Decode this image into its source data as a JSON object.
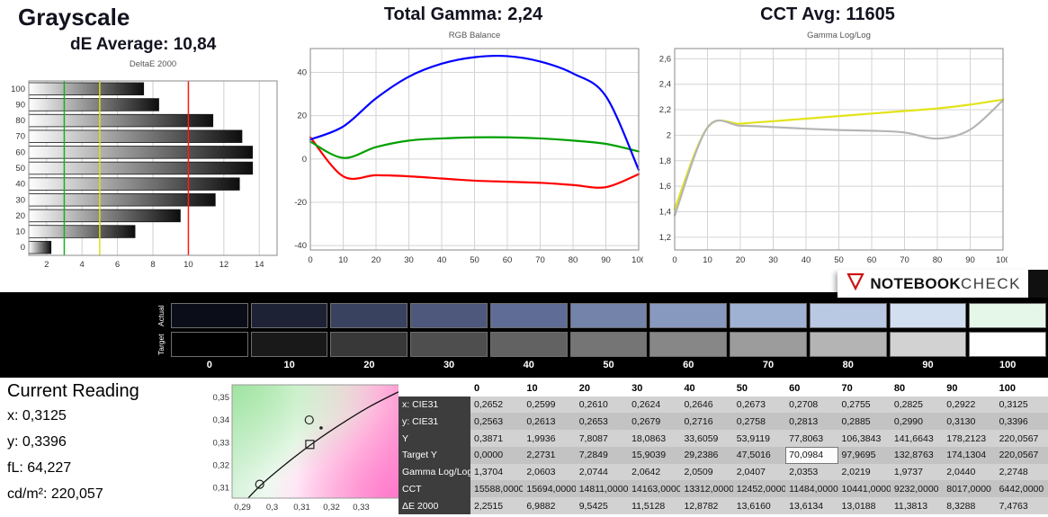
{
  "header": {
    "grayscale_title": "Grayscale",
    "de_average": "dE Average: 10,84",
    "total_gamma": "Total Gamma: 2,24",
    "cct_avg": "CCT Avg: 11605"
  },
  "logo": {
    "brand_bold": "NOTEBOOK",
    "brand_light": "CHECK",
    "accent_color": "#cc1111"
  },
  "chart_data": [
    {
      "type": "bar",
      "orientation": "horizontal",
      "title": "DeltaE 2000",
      "categories": [
        "100",
        "90",
        "80",
        "70",
        "60",
        "50",
        "40",
        "30",
        "20",
        "10",
        "0"
      ],
      "values": [
        7.4763,
        8.3288,
        11.3813,
        13.0188,
        13.6134,
        13.616,
        12.8782,
        11.5128,
        9.5425,
        6.9882,
        2.2515
      ],
      "xlim": [
        1,
        15
      ],
      "xticks": [
        2,
        4,
        6,
        8,
        10,
        12,
        14
      ],
      "bar_gradient": [
        "#ffffff",
        "#0d0d0d"
      ],
      "reference_lines": [
        {
          "x": 3,
          "color": "#19b219",
          "name": "good-threshold"
        },
        {
          "x": 5,
          "color": "#e0e019",
          "name": "acceptable-threshold"
        },
        {
          "x": 10,
          "color": "#ff1919",
          "name": "bad-threshold"
        }
      ]
    },
    {
      "type": "line",
      "title": "RGB Balance",
      "x": [
        0,
        10,
        20,
        30,
        40,
        50,
        60,
        70,
        80,
        90,
        100
      ],
      "xlim": [
        0,
        100
      ],
      "ylim": [
        -42,
        51
      ],
      "xticks": [
        0,
        10,
        20,
        30,
        40,
        50,
        60,
        70,
        80,
        90,
        100
      ],
      "xtick_labels": [
        "0",
        "10",
        "20",
        "30",
        "40",
        "50",
        "60",
        "70",
        "80",
        "90",
        "100"
      ],
      "ytick_values": [
        40,
        20,
        0,
        -20,
        -40
      ],
      "ytick_labels": [
        "40",
        "20",
        "0",
        "-20",
        "-40"
      ],
      "grid": true,
      "series": [
        {
          "name": "red-balance",
          "color": "#ff0000",
          "values": [
            10,
            -8,
            -7.5,
            -8,
            -9,
            -10,
            -10.5,
            -11,
            -12,
            -13,
            -7
          ]
        },
        {
          "name": "green-balance",
          "color": "#00a000",
          "values": [
            8,
            0.5,
            5.5,
            8.5,
            9.5,
            10,
            10,
            9.5,
            8.5,
            7,
            3.5
          ]
        },
        {
          "name": "blue-balance",
          "color": "#0000ff",
          "values": [
            9,
            15,
            28,
            38,
            44,
            47,
            47.5,
            45,
            39.5,
            29,
            -5
          ]
        }
      ]
    },
    {
      "type": "line",
      "title": "Gamma Log/Log",
      "x": [
        0,
        10,
        20,
        30,
        40,
        50,
        60,
        70,
        80,
        90,
        100
      ],
      "xlim": [
        0,
        100
      ],
      "ylim": [
        1.1,
        2.68
      ],
      "xticks": [
        0,
        10,
        20,
        30,
        40,
        50,
        60,
        70,
        80,
        90,
        100
      ],
      "xtick_labels": [
        "0",
        "10",
        "20",
        "30",
        "40",
        "50",
        "60",
        "70",
        "80",
        "90",
        "100"
      ],
      "ytick_values": [
        1.2,
        1.4,
        1.6,
        1.8,
        2.0,
        2.2,
        2.4,
        2.6
      ],
      "ytick_labels": [
        "1,2",
        "1,4",
        "1,6",
        "1,8",
        "2",
        "2,2",
        "2,4",
        "2,6"
      ],
      "grid": true,
      "series": [
        {
          "name": "target-gamma",
          "color": "#e3e31a",
          "values": [
            1.42,
            2.06,
            2.09,
            2.11,
            2.13,
            2.15,
            2.17,
            2.19,
            2.21,
            2.24,
            2.28
          ]
        },
        {
          "name": "measured-gamma",
          "color": "#b5b5b5",
          "values": [
            1.3704,
            2.0603,
            2.0744,
            2.0642,
            2.0509,
            2.0407,
            2.0353,
            2.0219,
            1.9737,
            2.044,
            2.2748
          ]
        }
      ]
    }
  ],
  "swatches": {
    "row_labels": [
      "Actual",
      "Target"
    ],
    "levels": [
      "0",
      "10",
      "20",
      "30",
      "40",
      "50",
      "60",
      "70",
      "80",
      "90",
      "100"
    ],
    "actual_colors": [
      "#0b0e18",
      "#1d2335",
      "#39425f",
      "#4d587c",
      "#5f6d96",
      "#7383aa",
      "#8899c0",
      "#a0b2d3",
      "#b9c8e3",
      "#d2dff1",
      "#e4f7e8"
    ],
    "target_colors": [
      "#000000",
      "#191919",
      "#383838",
      "#4e4e4e",
      "#626262",
      "#757575",
      "#878787",
      "#9c9c9c",
      "#b4b4b4",
      "#d2d2d2",
      "#ffffff"
    ]
  },
  "current_reading": {
    "title": "Current Reading",
    "x": "x: 0,3125",
    "y": "y: 0,3396",
    "fl": "fL: 64,227",
    "cdm2": "cd/m²: 220,057"
  },
  "cie_plot": {
    "xlim": [
      0.2865,
      0.3435
    ],
    "ylim": [
      0.3055,
      0.3555
    ],
    "xtick_values": [
      0.29,
      0.3,
      0.31,
      0.32,
      0.33
    ],
    "xtick_labels": [
      "0,29",
      "0,3",
      "0,31",
      "0,32",
      "0,33"
    ],
    "ytick_values": [
      0.31,
      0.32,
      0.33,
      0.34,
      0.35
    ],
    "ytick_labels": [
      "0,31",
      "0,32",
      "0,33",
      "0,34",
      "0,35"
    ],
    "locus": [
      [
        0.288,
        0.3
      ],
      [
        0.296,
        0.311
      ],
      [
        0.305,
        0.321
      ],
      [
        0.314,
        0.33
      ],
      [
        0.323,
        0.338
      ],
      [
        0.333,
        0.346
      ],
      [
        0.3435,
        0.353
      ]
    ],
    "markers": [
      {
        "shape": "circle",
        "x": 0.3125,
        "y": 0.34,
        "name": "measured-white-marker"
      },
      {
        "shape": "dot",
        "x": 0.3165,
        "y": 0.3365,
        "name": "reference-dot-marker"
      },
      {
        "shape": "square",
        "x": 0.3127,
        "y": 0.3292,
        "name": "target-white-marker"
      },
      {
        "shape": "circle",
        "x": 0.2958,
        "y": 0.3116,
        "name": "secondary-circle-marker"
      }
    ]
  },
  "table": {
    "columns": [
      "0",
      "10",
      "20",
      "30",
      "40",
      "50",
      "60",
      "70",
      "80",
      "90",
      "100"
    ],
    "rows": [
      {
        "label": "x: CIE31",
        "values": [
          "0,2652",
          "0,2599",
          "0,2610",
          "0,2624",
          "0,2646",
          "0,2673",
          "0,2708",
          "0,2755",
          "0,2825",
          "0,2922",
          "0,3125"
        ]
      },
      {
        "label": "y: CIE31",
        "values": [
          "0,2563",
          "0,2613",
          "0,2653",
          "0,2679",
          "0,2716",
          "0,2758",
          "0,2813",
          "0,2885",
          "0,2990",
          "0,3130",
          "0,3396"
        ]
      },
      {
        "label": "Y",
        "values": [
          "0,3871",
          "1,9936",
          "7,8087",
          "18,0863",
          "33,6059",
          "53,9119",
          "77,8063",
          "106,3843",
          "141,6643",
          "178,2123",
          "220,0567"
        ]
      },
      {
        "label": "Target Y",
        "values": [
          "0,0000",
          "2,2731",
          "7,2849",
          "15,9039",
          "29,2386",
          "47,5016",
          "70,0984",
          "97,9695",
          "132,8763",
          "174,1304",
          "220,0567"
        ]
      },
      {
        "label": "Gamma Log/Log",
        "values": [
          "1,3704",
          "2,0603",
          "2,0744",
          "2,0642",
          "2,0509",
          "2,0407",
          "2,0353",
          "2,0219",
          "1,9737",
          "2,0440",
          "2,2748"
        ]
      },
      {
        "label": "CCT",
        "values": [
          "15588,0000",
          "15694,0000",
          "14811,0000",
          "14163,0000",
          "13312,0000",
          "12452,0000",
          "11484,0000",
          "10441,0000",
          "9232,0000",
          "8017,0000",
          "6442,0000"
        ]
      },
      {
        "label": "ΔE 2000",
        "values": [
          "2,2515",
          "6,9882",
          "9,5425",
          "11,5128",
          "12,8782",
          "13,6160",
          "13,6134",
          "13,0188",
          "11,3813",
          "8,3288",
          "7,4763"
        ]
      }
    ],
    "highlight": {
      "row": 3,
      "col": 6,
      "value": "70,0984"
    }
  }
}
